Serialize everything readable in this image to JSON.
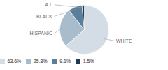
{
  "chart_data": {
    "type": "pie",
    "categories": [
      "WHITE",
      "HISPANIC",
      "BLACK",
      "A.I."
    ],
    "values": [
      63.6,
      25.8,
      9.1,
      1.5
    ],
    "value_labels": [
      "63.6%",
      "25.8%",
      "9.1%",
      "1.5%"
    ],
    "colors": [
      "#d4dce6",
      "#a8bccb",
      "#5b7f9b",
      "#1e3a52"
    ],
    "legend": "bottom"
  }
}
